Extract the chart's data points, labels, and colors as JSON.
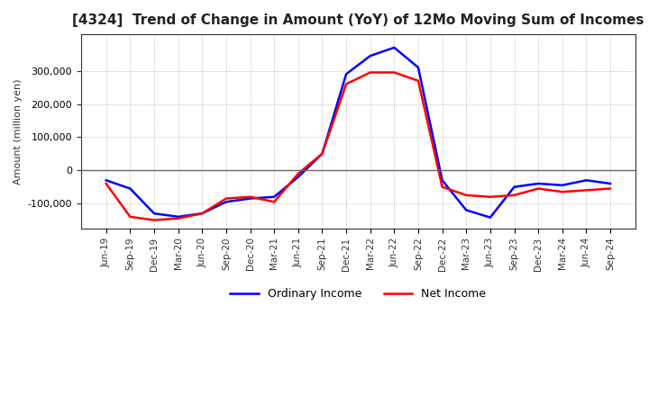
{
  "title": "[4324]  Trend of Change in Amount (YoY) of 12Mo Moving Sum of Incomes",
  "ylabel": "Amount (million yen)",
  "legend": [
    "Ordinary Income",
    "Net Income"
  ],
  "colors": [
    "blue",
    "red"
  ],
  "x_labels": [
    "Jun-19",
    "Sep-19",
    "Dec-19",
    "Mar-20",
    "Jun-20",
    "Sep-20",
    "Dec-20",
    "Mar-21",
    "Jun-21",
    "Sep-21",
    "Dec-21",
    "Mar-22",
    "Jun-22",
    "Sep-22",
    "Dec-22",
    "Mar-23",
    "Jun-23",
    "Sep-23",
    "Dec-23",
    "Mar-24",
    "Jun-24",
    "Sep-24"
  ],
  "ordinary_income": [
    -30000,
    -55000,
    -130000,
    -140000,
    -130000,
    -95000,
    -85000,
    -80000,
    -20000,
    50000,
    290000,
    345000,
    370000,
    310000,
    -30000,
    -120000,
    -142000,
    -50000,
    -40000,
    -45000,
    -30000,
    -40000
  ],
  "net_income": [
    -40000,
    -140000,
    -150000,
    -145000,
    -130000,
    -85000,
    -80000,
    -95000,
    -10000,
    50000,
    260000,
    295000,
    295000,
    270000,
    -50000,
    -75000,
    -80000,
    -75000,
    -55000,
    -65000,
    -60000,
    -55000
  ],
  "ylim": [
    -175000,
    410000
  ],
  "yticks": [
    -100000,
    0,
    100000,
    200000,
    300000
  ],
  "background_color": "#ffffff",
  "plot_background": "#ffffff",
  "grid_color": "#aaaaaa",
  "zero_line_color": "#666666"
}
